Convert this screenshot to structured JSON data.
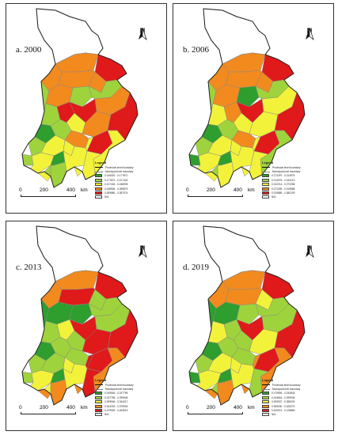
{
  "title": "",
  "boundary_legend": {
    "title": "Legend",
    "provincial": "Provincial-level boundary",
    "municipal": "Municipal-level boundary",
    "na": "N/A"
  },
  "scale_bar": {
    "ticks": [
      "0",
      "200",
      "400"
    ],
    "unit": "km"
  },
  "north_arrow": "N",
  "colors": {
    "c1": "#2e9e2e",
    "c2": "#9fd33b",
    "c3": "#f2f23a",
    "c4": "#f28a1e",
    "c5": "#e0191b",
    "na": "#ffffff"
  },
  "panels": [
    {
      "label": "a. 2000",
      "classes": [
        "0.145020 - 0.177871",
        "0.177872 - 0.217442",
        "0.217443 - 0.248905",
        "0.248906 - 0.289879",
        "0.289880 - 0.357074"
      ],
      "regions": [
        "c4",
        "c5",
        "c4",
        "c4",
        "c4",
        "c2",
        "c4",
        "c2",
        "c2",
        "c2",
        "c5",
        "c5",
        "c3",
        "c4",
        "c1",
        "c2",
        "c4",
        "c4",
        "c2",
        "c3",
        "c3",
        "c5",
        "c2",
        "c3",
        "c1",
        "c3",
        "c5",
        "c3",
        "c3",
        "c2",
        "c2",
        "c3",
        "c3",
        "c3"
      ]
    },
    {
      "label": "b. 2006",
      "classes": [
        "0.172297 - 0.214975",
        "0.214976 - 0.242213",
        "0.242214 - 0.272258",
        "0.272259 - 0.319888",
        "0.319889 - 0.382109"
      ],
      "regions": [
        "c4",
        "c5",
        "c4",
        "c4",
        "c4",
        "c2",
        "c4",
        "c1",
        "c2",
        "c3",
        "c4",
        "c5",
        "c3",
        "c3",
        "c1",
        "c2",
        "c4",
        "c3",
        "c2",
        "c3",
        "c3",
        "c5",
        "c1",
        "c3",
        "c1",
        "c3",
        "c5",
        "c2",
        "c3",
        "c3",
        "c2",
        "c3",
        "c3",
        "c3"
      ]
    },
    {
      "label": "c. 2013",
      "classes": [
        "0.199545 - 0.247795",
        "0.247796 - 0.299945",
        "0.299946 - 0.344217",
        "0.344218 - 0.379924",
        "0.379925 - 0.464913"
      ],
      "regions": [
        "c4",
        "c5",
        "c5",
        "c4",
        "c2",
        "c1",
        "c1",
        "c1",
        "c2",
        "c2",
        "c3",
        "c5",
        "c2",
        "c2",
        "c1",
        "c2",
        "c2",
        "c5",
        "c2",
        "c2",
        "c3",
        "c5",
        "c2",
        "c3",
        "c1",
        "c3",
        "c5",
        "c4",
        "c5",
        "c4",
        "c3",
        "c4",
        "c4",
        "c5"
      ]
    },
    {
      "label": "d. 2019",
      "classes": [
        "0.179594 - 0.244843",
        "0.244844 - 0.299936",
        "0.299937 - 0.355029",
        "0.355030 - 0.425373",
        "0.425374 - 0.478869"
      ],
      "regions": [
        "c4",
        "c5",
        "c4",
        "c4",
        "c3",
        "c1",
        "c1",
        "c2",
        "c2",
        "c3",
        "c2",
        "c5",
        "c2",
        "c2",
        "c1",
        "c2",
        "c2",
        "c3",
        "c2",
        "c3",
        "c3",
        "c5",
        "c1",
        "c3",
        "c1",
        "c3",
        "c5",
        "c4",
        "c2",
        "c4",
        "c2",
        "c4",
        "c4",
        "c4"
      ]
    }
  ]
}
